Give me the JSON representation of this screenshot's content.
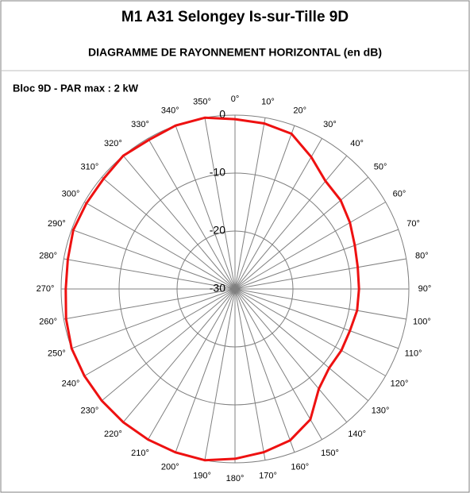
{
  "chart_data": {
    "type": "polar",
    "title": "M1 A31 Selongey Is-sur-Tille 9D",
    "subtitle": "DIAGRAMME DE RAYONNEMENT HORIZONTAL  (en dB)",
    "series": [
      {
        "name": "Bloc 9D - PAR max : 2 kW",
        "color": "#ee1111",
        "theta": [
          0,
          10,
          20,
          30,
          40,
          50,
          60,
          70,
          80,
          90,
          100,
          110,
          120,
          130,
          140,
          150,
          160,
          170,
          180,
          190,
          200,
          210,
          220,
          230,
          240,
          250,
          260,
          270,
          280,
          290,
          300,
          310,
          320,
          330,
          340,
          350
        ],
        "values": [
          -0.7,
          -1,
          -1.5,
          -3.7,
          -5.7,
          -6.2,
          -7.1,
          -8,
          -8.5,
          -8.6,
          -8.6,
          -8.9,
          -8.8,
          -8.8,
          -7.5,
          -4,
          -2.2,
          -1.4,
          -0.7,
          0,
          0,
          0,
          0,
          0,
          0,
          0,
          -0.4,
          -0.8,
          -0.7,
          -0.3,
          -0.4,
          -0.4,
          0,
          -0.3,
          0,
          0
        ]
      }
    ],
    "rlim": [
      -30,
      0
    ],
    "rticks": [
      0,
      -10,
      -20,
      -30
    ],
    "thetaticks": [
      {
        "value": 0,
        "label": "0°"
      },
      {
        "value": 10,
        "label": "10°"
      },
      {
        "value": 20,
        "label": "20°"
      },
      {
        "value": 30,
        "label": "30°"
      },
      {
        "value": 40,
        "label": "40°"
      },
      {
        "value": 50,
        "label": "50°"
      },
      {
        "value": 60,
        "label": "60°"
      },
      {
        "value": 70,
        "label": "70°"
      },
      {
        "value": 80,
        "label": "80°"
      },
      {
        "value": 90,
        "label": "90°"
      },
      {
        "value": 100,
        "label": "100°"
      },
      {
        "value": 110,
        "label": "110°"
      },
      {
        "value": 120,
        "label": "120°"
      },
      {
        "value": 130,
        "label": "130°"
      },
      {
        "value": 140,
        "label": "140°"
      },
      {
        "value": 150,
        "label": "150°"
      },
      {
        "value": 160,
        "label": "160°"
      },
      {
        "value": 170,
        "label": "170°"
      },
      {
        "value": 180,
        "label": "180°"
      },
      {
        "value": 190,
        "label": "190°"
      },
      {
        "value": 200,
        "label": "200°"
      },
      {
        "value": 210,
        "label": "210°"
      },
      {
        "value": 220,
        "label": "220°"
      },
      {
        "value": 230,
        "label": "230°"
      },
      {
        "value": 240,
        "label": "240°"
      },
      {
        "value": 250,
        "label": "250°"
      },
      {
        "value": 260,
        "label": "260°"
      },
      {
        "value": 270,
        "label": "270°"
      },
      {
        "value": 280,
        "label": "280°"
      },
      {
        "value": 290,
        "label": "290°"
      },
      {
        "value": 300,
        "label": "300°"
      },
      {
        "value": 310,
        "label": "310°"
      },
      {
        "value": 320,
        "label": "320°"
      },
      {
        "value": 330,
        "label": "330°"
      },
      {
        "value": 340,
        "label": "340°"
      },
      {
        "value": 350,
        "label": "350°"
      }
    ]
  }
}
